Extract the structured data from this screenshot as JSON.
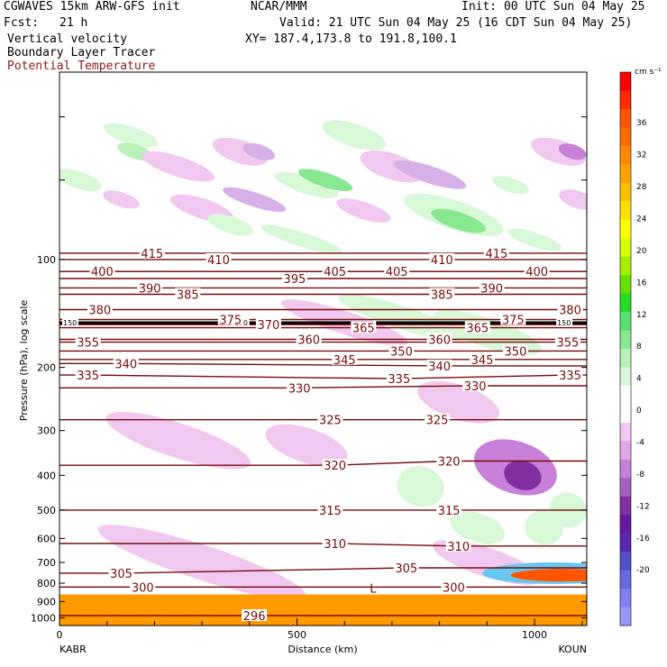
{
  "header": {
    "model": "CGWAVES 15km ARW-GFS init",
    "fcst_label": "Fcst:",
    "fcst_value": "21 h",
    "org": "NCAR/MMM",
    "init": "Init: 00 UTC Sun 04 May 25",
    "valid": "Valid: 21 UTC Sun 04 May 25 (16 CDT Sun 04 May 25)",
    "xy": "XY= 187.4,173.8 to 191.8,100.1",
    "field1": "Vertical velocity",
    "field2": "Boundary Layer Tracer",
    "field3": "Potential Temperature"
  },
  "chart_data": {
    "type": "heatmap",
    "title": "",
    "xlabel": "Distance (km)",
    "ylabel": "Pressure (hPa), log scale",
    "xlim": [
      0,
      1110
    ],
    "ylim": [
      1050,
      30
    ],
    "y_scale": "log",
    "x_ticks": [
      "0",
      "500",
      "1000"
    ],
    "y_ticks": [
      "100",
      "200",
      "300",
      "400",
      "500",
      "600",
      "700",
      "800",
      "900",
      "1000"
    ],
    "endpoints": {
      "left": "KABR",
      "right": "KOUN"
    },
    "colorbar": {
      "unit": "cm s⁻¹",
      "ticks": [
        "36",
        "32",
        "28",
        "24",
        "20",
        "16",
        "12",
        "8",
        "4",
        "0",
        "-4",
        "-8",
        "-12",
        "-16",
        "-20"
      ],
      "colors": [
        "#ff0000",
        "#ff2a00",
        "#ff5500",
        "#ff6a00",
        "#ff8800",
        "#ffa000",
        "#ffc000",
        "#ffe000",
        "#ffff00",
        "#d8ff00",
        "#a8f000",
        "#66e000",
        "#22dd22",
        "#55e070",
        "#88e890",
        "#b8f0b8",
        "#d8f8d8",
        "#ffffff",
        "#ffffff",
        "#f0c8f0",
        "#e0a8e8",
        "#c880d8",
        "#a860c0",
        "#8030a0",
        "#6818a0",
        "#5a28b0",
        "#5050c8",
        "#6868e0",
        "#8080f0",
        "#9898ff"
      ]
    },
    "isentropes": [
      {
        "theta": 296,
        "label_x": 410,
        "p": 985
      },
      {
        "theta": 300,
        "label_x": 175,
        "p": 820
      },
      {
        "theta": 300,
        "label_x": 830,
        "p": 820
      },
      {
        "theta": 305,
        "label_x": 130,
        "p": 750
      },
      {
        "theta": 305,
        "label_x": 730,
        "p": 725
      },
      {
        "theta": 310,
        "label_x": 580,
        "p": 620
      },
      {
        "theta": 310,
        "label_x": 840,
        "p": 630
      },
      {
        "theta": 315,
        "label_x": 570,
        "p": 500
      },
      {
        "theta": 315,
        "label_x": 820,
        "p": 500
      },
      {
        "theta": 320,
        "label_x": 580,
        "p": 375
      },
      {
        "theta": 320,
        "label_x": 820,
        "p": 365
      },
      {
        "theta": 325,
        "label_x": 570,
        "p": 280
      },
      {
        "theta": 325,
        "label_x": 795,
        "p": 280
      },
      {
        "theta": 330,
        "label_x": 505,
        "p": 228
      },
      {
        "theta": 330,
        "label_x": 875,
        "p": 225
      },
      {
        "theta": 335,
        "label_x": 60,
        "p": 210
      },
      {
        "theta": 335,
        "label_x": 715,
        "p": 215
      },
      {
        "theta": 335,
        "label_x": 1075,
        "p": 210
      },
      {
        "theta": 340,
        "label_x": 140,
        "p": 195
      },
      {
        "theta": 340,
        "label_x": 800,
        "p": 198
      },
      {
        "theta": 345,
        "label_x": 600,
        "p": 190
      },
      {
        "theta": 345,
        "label_x": 890,
        "p": 190
      },
      {
        "theta": 350,
        "label_x": 720,
        "p": 180
      },
      {
        "theta": 350,
        "label_x": 960,
        "p": 180
      },
      {
        "theta": 355,
        "label_x": 60,
        "p": 170
      },
      {
        "theta": 355,
        "label_x": 1070,
        "p": 170
      },
      {
        "theta": 360,
        "label_x": 525,
        "p": 167
      },
      {
        "theta": 360,
        "label_x": 800,
        "p": 167
      },
      {
        "theta": 365,
        "label_x": 640,
        "p": 155
      },
      {
        "theta": 365,
        "label_x": 880,
        "p": 155
      },
      {
        "theta": 370,
        "label_x": 440,
        "p": 152
      },
      {
        "theta": 375,
        "label_x": 360,
        "p": 147
      },
      {
        "theta": 375,
        "label_x": 955,
        "p": 147
      },
      {
        "theta": 380,
        "label_x": 85,
        "p": 138
      },
      {
        "theta": 380,
        "label_x": 1075,
        "p": 138
      },
      {
        "theta": 385,
        "label_x": 270,
        "p": 125
      },
      {
        "theta": 385,
        "label_x": 805,
        "p": 125
      },
      {
        "theta": 390,
        "label_x": 190,
        "p": 120
      },
      {
        "theta": 390,
        "label_x": 910,
        "p": 120
      },
      {
        "theta": 395,
        "label_x": 495,
        "p": 113
      },
      {
        "theta": 400,
        "label_x": 90,
        "p": 108
      },
      {
        "theta": 400,
        "label_x": 1005,
        "p": 108
      },
      {
        "theta": 405,
        "label_x": 580,
        "p": 108
      },
      {
        "theta": 405,
        "label_x": 710,
        "p": 108
      },
      {
        "theta": 410,
        "label_x": 335,
        "p": 100
      },
      {
        "theta": 410,
        "label_x": 805,
        "p": 100
      },
      {
        "theta": 415,
        "label_x": 195,
        "p": 96
      },
      {
        "theta": 415,
        "label_x": 920,
        "p": 96
      }
    ],
    "tropopause_labels": [
      "150",
      "150",
      "150"
    ],
    "low_marker": "L",
    "grid": false,
    "legend": "colorbar right"
  }
}
